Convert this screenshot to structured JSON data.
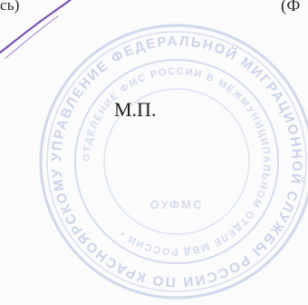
{
  "document": {
    "fragment_left": "сь)",
    "fragment_right": "(Ф",
    "seal_label": "М.П."
  },
  "stamp": {
    "ring_color": "#b8c4e0",
    "ring_text_color": "#c9d2ea",
    "signature_color": "#6a3fb0",
    "outer_text": "УПРАВЛЕНИЕ ФЕДЕРАЛЬНОЙ МИГРАЦИОННОЙ СЛУЖБЫ РОССИИ ПО КРАСНОЯРСКОМУ КРАЮ ФМС РОССИИ •",
    "inner_text": "ОТДЕЛЕНИЕ ФМС РОССИИ В МЕЖМУНИЦИПАЛЬНОМ ОТДЕЛЕ МВД РОССИИ •",
    "center_text": "ОУФМС"
  }
}
